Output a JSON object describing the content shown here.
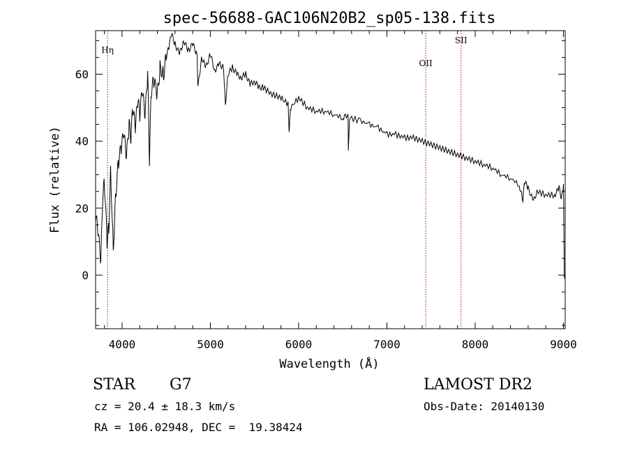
{
  "chart_data": {
    "type": "line",
    "title": "spec-56688-GAC106N20B2_sp05-138.fits",
    "xlabel": "Wavelength (Å)",
    "ylabel": "Flux (relative)",
    "xlim": [
      3700,
      9020
    ],
    "ylim": [
      -16,
      73
    ],
    "xticks": [
      4000,
      5000,
      6000,
      7000,
      8000,
      9000
    ],
    "yticks": [
      0,
      20,
      40,
      60
    ],
    "spectrum": {
      "x": [
        3700,
        3730,
        3760,
        3780,
        3800,
        3830,
        3850,
        3870,
        3900,
        3930,
        3960,
        3990,
        4020,
        4050,
        4080,
        4100,
        4120,
        4150,
        4180,
        4200,
        4230,
        4260,
        4290,
        4310,
        4330,
        4360,
        4400,
        4430,
        4470,
        4500,
        4530,
        4560,
        4600,
        4650,
        4700,
        4750,
        4800,
        4850,
        4860,
        4900,
        4950,
        5000,
        5050,
        5100,
        5150,
        5170,
        5200,
        5250,
        5300,
        5350,
        5400,
        5450,
        5500,
        5550,
        5600,
        5700,
        5800,
        5880,
        5893,
        5910,
        6000,
        6100,
        6200,
        6300,
        6400,
        6500,
        6560,
        6563,
        6580,
        6700,
        6800,
        6900,
        7000,
        7100,
        7200,
        7300,
        7400,
        7500,
        7600,
        7700,
        7800,
        7900,
        8000,
        8100,
        8200,
        8300,
        8400,
        8500,
        8540,
        8560,
        8600,
        8660,
        8700,
        8800,
        8900,
        8950,
        8980,
        9000,
        9010
      ],
      "y": [
        18,
        12,
        4,
        22,
        28,
        10,
        14,
        32,
        8,
        25,
        34,
        38,
        42,
        35,
        45,
        40,
        50,
        44,
        52,
        48,
        55,
        47,
        60,
        34,
        55,
        58,
        54,
        62,
        60,
        65,
        68,
        72,
        69,
        66,
        70,
        67,
        69,
        66,
        56,
        65,
        62,
        66,
        61,
        63,
        62,
        51,
        60,
        62,
        60,
        59,
        60,
        57,
        58,
        56,
        56,
        54,
        53,
        51,
        43,
        50,
        53,
        50,
        49,
        49,
        48,
        47,
        48,
        38,
        47,
        46,
        45,
        44,
        42,
        42,
        41,
        41,
        40,
        39,
        38,
        37,
        36,
        35,
        34,
        33,
        32,
        30,
        29,
        27,
        22,
        28,
        26,
        22,
        25,
        24,
        24,
        26,
        23,
        27,
        -1
      ]
    },
    "lines": [
      {
        "label": "Hη",
        "x": 3835
      },
      {
        "label": "OII",
        "x": 7440
      },
      {
        "label": "SII",
        "x": 7840
      }
    ],
    "line_color": "#c00000"
  },
  "footer": {
    "object_class": "STAR",
    "subclass": "G7",
    "survey": "LAMOST DR2",
    "redshift": "cz = 20.4 ± 18.3 km/s",
    "obs_date": "Obs-Date: 20140130",
    "coords": "RA = 106.02948, DEC =  19.38424"
  }
}
